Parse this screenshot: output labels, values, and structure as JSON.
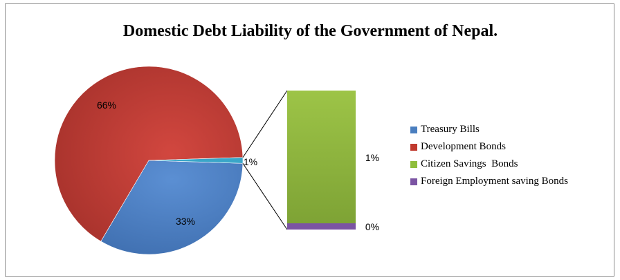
{
  "chart_data": {
    "type": "bar-of-pie",
    "title": "Domestic Debt Liability of the Government of Nepal.",
    "series": [
      {
        "name": "Treasury Bills",
        "value": 33,
        "label": "33%",
        "color": "#4a7ebf"
      },
      {
        "name": "Development Bonds",
        "value": 66,
        "label": "66%",
        "color": "#c0392e"
      },
      {
        "name": "Citizen Savings  Bonds",
        "value": 1,
        "label": "1%",
        "color": "#8fbe3c"
      },
      {
        "name": "Foreign Employment saving Bonds",
        "value": 0,
        "label": "0%",
        "color": "#7b54a3"
      }
    ],
    "pie_other_label": "1%",
    "pie_other_color": "#3aa6c8",
    "legend_position": "right",
    "grid": false
  }
}
